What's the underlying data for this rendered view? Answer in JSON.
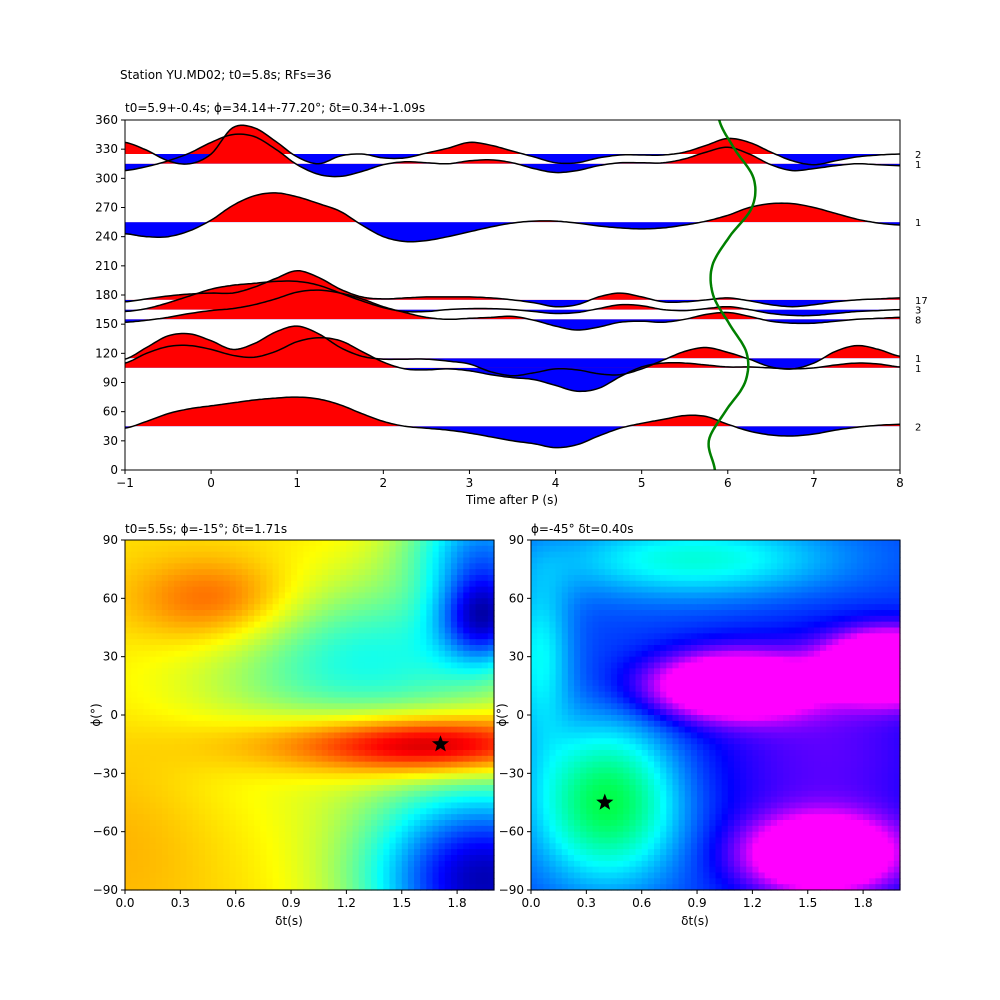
{
  "suptitle": "Station YU.MD02; t0=5.8s; RFs=36",
  "colors": {
    "positive_fill": "#ff0000",
    "negative_fill": "#0000ff",
    "trace": "#000000",
    "green_curve": "#008000",
    "star": "#000000"
  },
  "chart_data": [
    {
      "id": "rf-traces",
      "type": "line",
      "title": "t0=5.9+-0.4s; ϕ=34.14+-77.20°; δt=0.34+-1.09s",
      "xlabel": "Time after P (s)",
      "ylabel": "",
      "xlim": [
        -1,
        8
      ],
      "ylim": [
        0,
        360
      ],
      "xticks": [
        -1,
        0,
        1,
        2,
        3,
        4,
        5,
        6,
        7,
        8
      ],
      "yticks": [
        0,
        30,
        60,
        90,
        120,
        150,
        180,
        210,
        240,
        270,
        300,
        330,
        360
      ],
      "grid": false,
      "traces_x": [
        -1,
        -0.75,
        -0.5,
        -0.25,
        0,
        0.25,
        0.5,
        0.75,
        1,
        1.25,
        1.5,
        1.75,
        2,
        2.25,
        2.5,
        2.75,
        3,
        3.25,
        3.5,
        3.75,
        4,
        4.25,
        4.5,
        4.75,
        5,
        5.25,
        5.5,
        5.75,
        6,
        6.25,
        6.5,
        6.75,
        7,
        7.25,
        7.5,
        7.75,
        8
      ],
      "traces": [
        {
          "baz": 315,
          "count": "1",
          "y": [
            308,
            312,
            318,
            326,
            337,
            345,
            343,
            330,
            314,
            304,
            302,
            307,
            314,
            317,
            316,
            315,
            318,
            319,
            316,
            310,
            306,
            308,
            313,
            316,
            316,
            316,
            320,
            327,
            332,
            325,
            314,
            308,
            310,
            313,
            315,
            314,
            313
          ]
        },
        {
          "baz": 325,
          "count": "2",
          "y": [
            337,
            329,
            318,
            315,
            325,
            352,
            352,
            338,
            322,
            315,
            323,
            325,
            321,
            321,
            326,
            331,
            337,
            334,
            328,
            322,
            316,
            316,
            321,
            324,
            324,
            324,
            327,
            334,
            341,
            337,
            327,
            318,
            314,
            318,
            322,
            324,
            325
          ]
        },
        {
          "baz": 255,
          "count": "1",
          "y": [
            243,
            240,
            240,
            246,
            257,
            272,
            282,
            285,
            281,
            274,
            266,
            252,
            240,
            235,
            236,
            240,
            245,
            250,
            254,
            256,
            256,
            254,
            251,
            249,
            248,
            249,
            252,
            256,
            262,
            270,
            274,
            274,
            270,
            264,
            258,
            254,
            252
          ]
        },
        {
          "baz": 175,
          "count": "17",
          "y": [
            173,
            176,
            179,
            181,
            182,
            182,
            188,
            197,
            205,
            198,
            186,
            178,
            176,
            177,
            178,
            178,
            178,
            177,
            175,
            172,
            168,
            170,
            178,
            182,
            178,
            173,
            173,
            175,
            177,
            174,
            170,
            168,
            170,
            173,
            175,
            176,
            177
          ]
        },
        {
          "baz": 165,
          "count": "3",
          "y": [
            163,
            166,
            172,
            179,
            186,
            190,
            192,
            194,
            194,
            190,
            182,
            174,
            167,
            163,
            163,
            165,
            166,
            166,
            165,
            163,
            161,
            162,
            166,
            170,
            169,
            165,
            164,
            166,
            168,
            165,
            161,
            159,
            159,
            161,
            163,
            164,
            165
          ]
        },
        {
          "baz": 155,
          "count": "8",
          "y": [
            152,
            154,
            157,
            161,
            164,
            166,
            170,
            176,
            183,
            185,
            182,
            176,
            168,
            162,
            157,
            155,
            156,
            157,
            158,
            154,
            148,
            144,
            147,
            152,
            153,
            152,
            155,
            160,
            162,
            158,
            153,
            151,
            151,
            153,
            155,
            156,
            157
          ]
        },
        {
          "baz": 115,
          "count": "1",
          "y": [
            114,
            126,
            138,
            140,
            133,
            124,
            130,
            142,
            148,
            140,
            126,
            117,
            114,
            114,
            114,
            112,
            109,
            101,
            97,
            100,
            104,
            103,
            99,
            98,
            104,
            113,
            122,
            126,
            121,
            114,
            106,
            104,
            110,
            122,
            128,
            124,
            117
          ]
        },
        {
          "baz": 105,
          "count": "1",
          "y": [
            110,
            120,
            127,
            128,
            124,
            118,
            116,
            122,
            132,
            136,
            133,
            122,
            111,
            104,
            103,
            104,
            102,
            98,
            95,
            93,
            87,
            81,
            84,
            96,
            106,
            110,
            110,
            108,
            106,
            106,
            105,
            104,
            105,
            108,
            110,
            109,
            106
          ]
        },
        {
          "baz": 45,
          "count": "2",
          "y": [
            43,
            50,
            58,
            63,
            66,
            69,
            72,
            74,
            75,
            73,
            67,
            58,
            50,
            45,
            43,
            41,
            38,
            34,
            30,
            27,
            23,
            26,
            35,
            43,
            48,
            52,
            56,
            55,
            47,
            40,
            36,
            35,
            37,
            41,
            44,
            46,
            47
          ]
        }
      ],
      "green_curve": {
        "y": [
          0,
          30,
          60,
          90,
          120,
          150,
          180,
          210,
          240,
          270,
          300,
          330,
          360
        ],
        "x": [
          5.85,
          5.78,
          5.97,
          6.2,
          6.22,
          6.02,
          5.83,
          5.82,
          6.02,
          6.28,
          6.3,
          6.08,
          5.9
        ]
      }
    },
    {
      "id": "grid-search-left",
      "type": "heatmap",
      "title": "t0=5.5s; ϕ=-15°; δt=1.71s",
      "xlabel": "δt(s)",
      "ylabel": "ϕ(°)",
      "xlim": [
        0,
        2
      ],
      "ylim": [
        -90,
        90
      ],
      "xticks": [
        0.0,
        0.3,
        0.6,
        0.9,
        1.2,
        1.5,
        1.8
      ],
      "xtick_labels": [
        "0.0",
        "0.3",
        "0.6",
        "0.9",
        "1.2",
        "1.5",
        "1.8"
      ],
      "yticks": [
        -90,
        -60,
        -30,
        0,
        30,
        60,
        90
      ],
      "colormap": "jet",
      "background_level": 0.66,
      "features": [
        {
          "dt": 0.5,
          "phi": 58,
          "sdt": 0.32,
          "sphi": 16,
          "amp": 0.16
        },
        {
          "dt": 1.72,
          "phi": -16,
          "sdt": 0.45,
          "sphi": 11,
          "amp": 0.34
        },
        {
          "dt": 1.05,
          "phi": -14,
          "sdt": 0.5,
          "sphi": 11,
          "amp": 0.12
        },
        {
          "dt": 1.95,
          "phi": -85,
          "sdt": 0.45,
          "sphi": 34,
          "amp": -0.6
        },
        {
          "dt": 1.95,
          "phi": 50,
          "sdt": 0.18,
          "sphi": 17,
          "amp": -0.45
        },
        {
          "dt": 1.95,
          "phi": 88,
          "sdt": 0.3,
          "sphi": 20,
          "amp": -0.35
        },
        {
          "dt": 1.35,
          "phi": 30,
          "sdt": 0.55,
          "sphi": 28,
          "amp": -0.22
        },
        {
          "dt": 0.9,
          "phi": 0,
          "sdt": 0.8,
          "sphi": 50,
          "amp": -0.06
        },
        {
          "dt": 0.0,
          "phi": -60,
          "sdt": 0.4,
          "sphi": 40,
          "amp": 0.05
        }
      ],
      "star": {
        "dt": 1.71,
        "phi": -15
      }
    },
    {
      "id": "grid-search-right",
      "type": "heatmap",
      "title": "ϕ=-45° δt=0.40s",
      "xlabel": "δt(s)",
      "ylabel": "ϕ(°)",
      "xlim": [
        0,
        2
      ],
      "ylim": [
        -90,
        90
      ],
      "xticks": [
        0.0,
        0.3,
        0.6,
        0.9,
        1.2,
        1.5,
        1.8
      ],
      "xtick_labels": [
        "0.0",
        "0.3",
        "0.6",
        "0.9",
        "1.2",
        "1.5",
        "1.8"
      ],
      "yticks": [
        -90,
        -60,
        -30,
        0,
        30,
        60,
        90
      ],
      "colormap": "hsv",
      "background_level": 0.25,
      "features": [
        {
          "dt": 0.42,
          "phi": -45,
          "sdt": 0.28,
          "sphi": 28,
          "amp": 0.3
        },
        {
          "dt": 0.9,
          "phi": 80,
          "sdt": 0.55,
          "sphi": 14,
          "amp": 0.18
        },
        {
          "dt": 1.1,
          "phi": 15,
          "sdt": 0.3,
          "sphi": 11,
          "amp": -0.55
        },
        {
          "dt": 1.58,
          "phi": -72,
          "sdt": 0.27,
          "sphi": 13,
          "amp": -0.55
        },
        {
          "dt": 1.95,
          "phi": 25,
          "sdt": 0.22,
          "sphi": 11,
          "amp": -0.75
        },
        {
          "dt": 0.05,
          "phi": 30,
          "sdt": 0.12,
          "sphi": 30,
          "amp": 0.15
        },
        {
          "dt": 1.6,
          "phi": -20,
          "sdt": 0.5,
          "sphi": 40,
          "amp": -0.12
        }
      ],
      "star": {
        "dt": 0.4,
        "phi": -45
      }
    }
  ]
}
